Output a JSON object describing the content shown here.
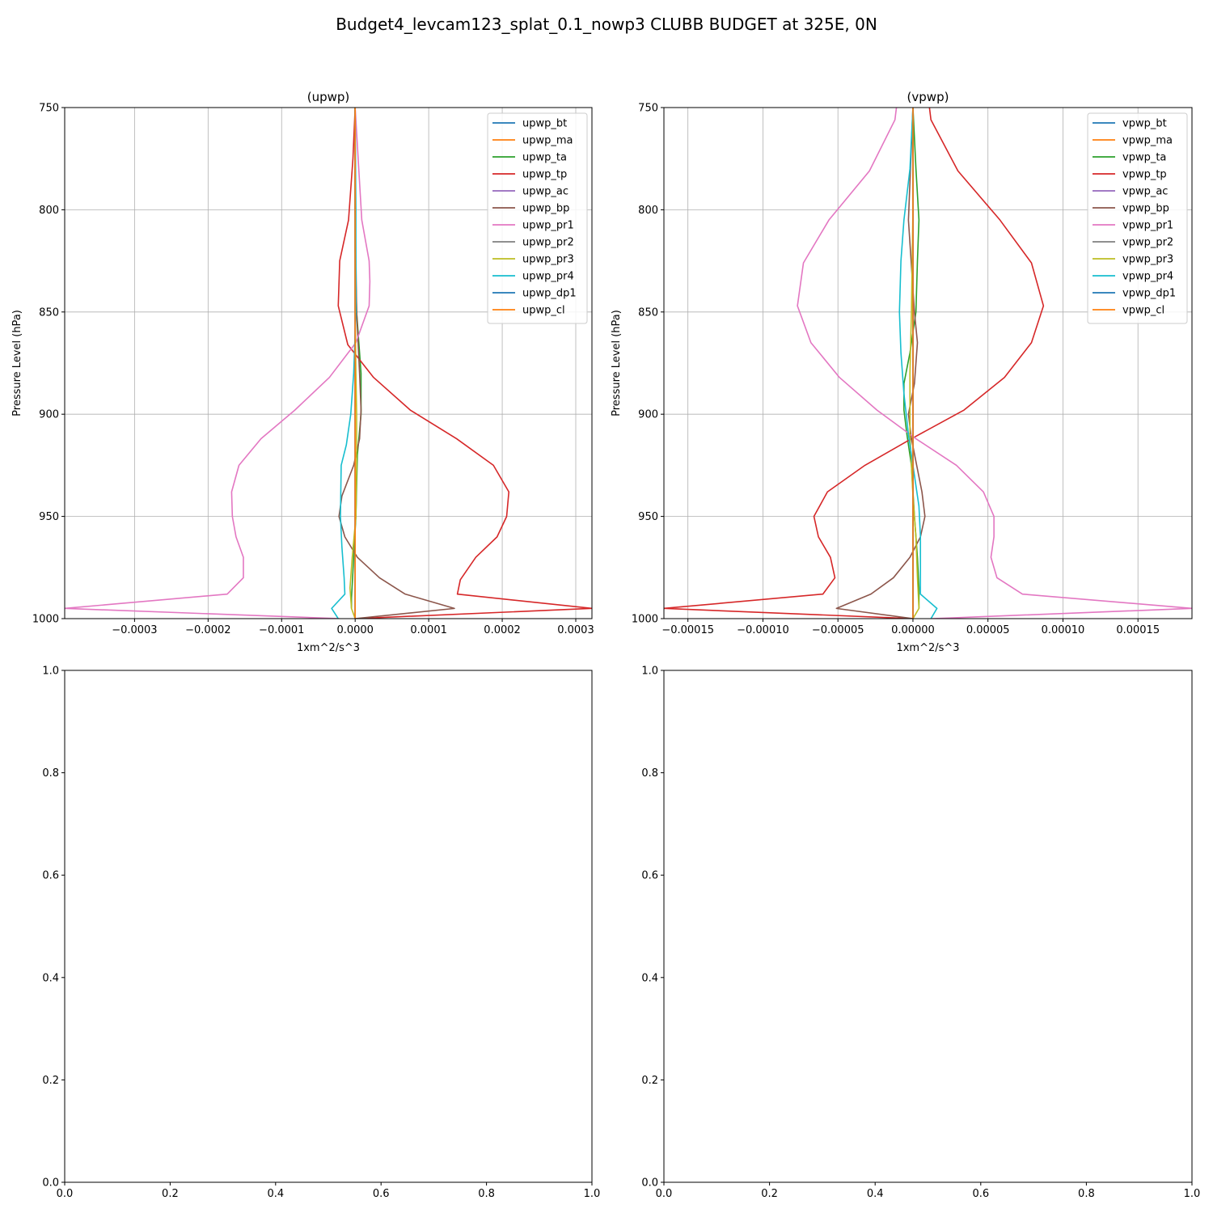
{
  "figure": {
    "title": "Budget4_levcam123_splat_0.1_nowp3 CLUBB BUDGET at 325E, 0N"
  },
  "chart_data": [
    {
      "type": "line",
      "title": "(upwp)",
      "xlabel": "1xm^2/s^3",
      "ylabel": "Pressure Level (hPa)",
      "xlim": [
        -0.000395,
        0.000322
      ],
      "ylim": [
        1000,
        750
      ],
      "y_inverted": true,
      "grid": true,
      "legend_position": "top-right",
      "xticks": [
        -0.0003,
        -0.0002,
        -0.0001,
        0,
        0.0001,
        0.0002,
        0.0003
      ],
      "xtick_labels": [
        "−0.0003",
        "−0.0002",
        "−0.0001",
        "0.0000",
        "0.0001",
        "0.0002",
        "0.0003"
      ],
      "yticks": [
        750,
        800,
        850,
        900,
        950,
        1000
      ],
      "ytick_labels": [
        "750",
        "800",
        "850",
        "900",
        "950",
        "1000"
      ],
      "series": [
        {
          "name": "upwp_bt",
          "color": "#1f77b4",
          "x": [
            0,
            0,
            0,
            0,
            0,
            0,
            0
          ],
          "y": [
            750,
            800,
            850,
            900,
            950,
            990,
            1000
          ]
        },
        {
          "name": "upwp_ma",
          "color": "#ff7f0e",
          "x": [
            0,
            0,
            0,
            0,
            0,
            0,
            0
          ],
          "y": [
            750,
            800,
            850,
            900,
            950,
            990,
            1000
          ]
        },
        {
          "name": "upwp_ta",
          "color": "#2ca02c",
          "x": [
            0,
            0,
            2e-06,
            5e-06,
            8e-06,
            8e-06,
            3e-06,
            1e-06,
            -2e-06,
            -5e-06,
            -5e-06
          ],
          "y": [
            750,
            820,
            850,
            865,
            880,
            900,
            920,
            950,
            970,
            990,
            995
          ]
        },
        {
          "name": "upwp_tp",
          "color": "#d62728",
          "x": [
            0,
            -3e-06,
            -9e-06,
            -2.1e-05,
            -2.3e-05,
            -1e-05,
            2.5e-05,
            7.5e-05,
            0.000138,
            0.000188,
            0.000209,
            0.000206,
            0.000193,
            0.000164,
            0.000143,
            0.000139,
            0.000322,
            0
          ],
          "y": [
            750,
            775,
            805,
            825,
            847,
            866,
            882,
            898,
            912,
            925,
            938,
            950,
            960,
            970,
            981,
            988,
            995,
            1000
          ]
        },
        {
          "name": "upwp_ac",
          "color": "#9467bd",
          "x": [
            0,
            0,
            0,
            0,
            0,
            0,
            0
          ],
          "y": [
            750,
            800,
            850,
            900,
            950,
            990,
            1000
          ]
        },
        {
          "name": "upwp_bp",
          "color": "#8c564b",
          "x": [
            0,
            0,
            2e-06,
            6e-06,
            8e-06,
            6e-06,
            -2e-06,
            -1.8e-05,
            -2.2e-05,
            -1.4e-05,
            3e-06,
            3.3e-05,
            6.8e-05,
            0.000135,
            0
          ],
          "y": [
            750,
            800,
            850,
            880,
            898,
            912,
            925,
            940,
            950,
            960,
            970,
            980,
            988,
            995,
            1000
          ]
        },
        {
          "name": "upwp_pr1",
          "color": "#e377c2",
          "x": [
            0,
            9e-06,
            1.9e-05,
            2e-05,
            1.9e-05,
            1e-06,
            -3.5e-05,
            -8.2e-05,
            -0.000128,
            -0.000158,
            -0.000168,
            -0.000167,
            -0.000162,
            -0.000152,
            -0.000152,
            -0.000174,
            -0.000395,
            -2.1e-05
          ],
          "y": [
            750,
            805,
            825,
            835,
            847,
            865,
            882,
            898,
            912,
            925,
            938,
            950,
            960,
            970,
            980,
            988,
            995,
            1000
          ]
        },
        {
          "name": "upwp_pr2",
          "color": "#7f7f7f",
          "x": [
            0,
            0,
            0,
            0,
            0,
            0,
            0
          ],
          "y": [
            750,
            800,
            850,
            900,
            950,
            990,
            1000
          ]
        },
        {
          "name": "upwp_pr3",
          "color": "#bcbd22",
          "x": [
            0,
            0,
            0,
            1e-06,
            2e-06,
            2e-06,
            1e-06,
            -4e-06,
            -7e-06,
            -5e-06,
            0
          ],
          "y": [
            750,
            800,
            850,
            880,
            900,
            925,
            950,
            970,
            985,
            995,
            1000
          ]
        },
        {
          "name": "upwp_pr4",
          "color": "#17becf",
          "x": [
            0,
            1e-06,
            1e-06,
            -2e-06,
            -6e-06,
            -1.2e-05,
            -1.9e-05,
            -2e-05,
            -1.8e-05,
            -1.5e-05,
            -1.4e-05,
            -3.2e-05,
            -2.3e-05
          ],
          "y": [
            750,
            800,
            850,
            880,
            900,
            915,
            925,
            950,
            965,
            980,
            988,
            995,
            1000
          ]
        },
        {
          "name": "upwp_dp1",
          "color": "#1f77b4",
          "x": [
            0,
            0,
            0,
            0,
            0,
            0,
            0
          ],
          "y": [
            750,
            800,
            850,
            900,
            950,
            990,
            1000
          ]
        },
        {
          "name": "upwp_cl",
          "color": "#ff7f0e",
          "x": [
            0,
            0,
            0,
            0,
            0,
            0,
            0
          ],
          "y": [
            750,
            800,
            850,
            900,
            950,
            990,
            1000
          ]
        }
      ]
    },
    {
      "type": "line",
      "title": "(vpwp)",
      "xlabel": "1xm^2/s^3",
      "ylabel": "Pressure Level (hPa)",
      "xlim": [
        -0.000166,
        0.000186
      ],
      "ylim": [
        1000,
        750
      ],
      "y_inverted": true,
      "grid": true,
      "legend_position": "top-right",
      "xticks": [
        -0.00015,
        -0.0001,
        -5e-05,
        0,
        5e-05,
        0.0001,
        0.00015
      ],
      "xtick_labels": [
        "−0.00015",
        "−0.00010",
        "−0.00005",
        "0.00000",
        "0.00005",
        "0.00010",
        "0.00015"
      ],
      "yticks": [
        750,
        800,
        850,
        900,
        950,
        1000
      ],
      "ytick_labels": [
        "750",
        "800",
        "850",
        "900",
        "950",
        "1000"
      ],
      "series": [
        {
          "name": "vpwp_bt",
          "color": "#1f77b4",
          "x": [
            0,
            0,
            0,
            0,
            0,
            0,
            0
          ],
          "y": [
            750,
            800,
            850,
            900,
            950,
            990,
            1000
          ]
        },
        {
          "name": "vpwp_ma",
          "color": "#ff7f0e",
          "x": [
            0,
            0,
            0,
            0,
            0,
            0,
            0
          ],
          "y": [
            750,
            800,
            850,
            900,
            950,
            990,
            1000
          ]
        },
        {
          "name": "vpwp_ta",
          "color": "#2ca02c",
          "x": [
            0,
            2e-06,
            4e-06,
            3e-06,
            2e-06,
            -2e-06,
            -6e-06,
            -6e-06,
            -4e-06,
            -1e-06,
            1e-06,
            3e-06,
            4e-06,
            4e-06
          ],
          "y": [
            750,
            780,
            805,
            825,
            850,
            870,
            885,
            898,
            910,
            925,
            950,
            970,
            985,
            995
          ]
        },
        {
          "name": "vpwp_tp",
          "color": "#d62728",
          "x": [
            1.1e-05,
            1.2e-05,
            3e-05,
            5.8e-05,
            7.9e-05,
            8.7e-05,
            7.9e-05,
            6.1e-05,
            3.4e-05,
            -1e-06,
            -3.2e-05,
            -5.7e-05,
            -6.6e-05,
            -6.3e-05,
            -5.5e-05,
            -5.2e-05,
            -6e-05,
            -0.000166,
            0
          ],
          "y": [
            750,
            756,
            781,
            805,
            826,
            847,
            865,
            882,
            898,
            912,
            925,
            938,
            950,
            960,
            970,
            980,
            988,
            995,
            1000
          ]
        },
        {
          "name": "vpwp_ac",
          "color": "#9467bd",
          "x": [
            0,
            0,
            0,
            0,
            0,
            0,
            0
          ],
          "y": [
            750,
            800,
            850,
            900,
            950,
            990,
            1000
          ]
        },
        {
          "name": "vpwp_bp",
          "color": "#8c564b",
          "x": [
            0,
            -3e-06,
            1e-06,
            3e-06,
            1e-06,
            -3e-06,
            -1e-06,
            6e-06,
            8e-06,
            5e-06,
            -2e-06,
            -1.3e-05,
            -2.8e-05,
            -5.1e-05,
            0
          ],
          "y": [
            750,
            805,
            850,
            865,
            885,
            900,
            912,
            938,
            950,
            960,
            970,
            980,
            988,
            995,
            1000
          ]
        },
        {
          "name": "vpwp_pr1",
          "color": "#e377c2",
          "x": [
            -1.1e-05,
            -1.2e-05,
            -2.9e-05,
            -5.6e-05,
            -7.3e-05,
            -7.7e-05,
            -6.8e-05,
            -4.9e-05,
            -2.4e-05,
            2e-06,
            2.9e-05,
            4.7e-05,
            5.4e-05,
            5.4e-05,
            5.2e-05,
            5.6e-05,
            7.3e-05,
            0.000186,
            1.3e-05
          ],
          "y": [
            750,
            756,
            781,
            805,
            826,
            847,
            865,
            882,
            898,
            912,
            925,
            938,
            950,
            960,
            970,
            980,
            988,
            995,
            1000
          ]
        },
        {
          "name": "vpwp_pr2",
          "color": "#7f7f7f",
          "x": [
            0,
            0,
            0,
            0,
            0,
            0,
            0
          ],
          "y": [
            750,
            800,
            850,
            900,
            950,
            990,
            1000
          ]
        },
        {
          "name": "vpwp_pr3",
          "color": "#bcbd22",
          "x": [
            0,
            0,
            -1e-06,
            -2e-06,
            -2e-06,
            0,
            2e-06,
            3e-06,
            4e-06,
            0
          ],
          "y": [
            750,
            800,
            850,
            880,
            910,
            940,
            960,
            980,
            995,
            1000
          ]
        },
        {
          "name": "vpwp_pr4",
          "color": "#17becf",
          "x": [
            0,
            -2e-06,
            -6e-06,
            -8e-06,
            -9e-06,
            -8e-06,
            -6e-06,
            -3e-06,
            1e-06,
            4e-06,
            5e-06,
            5e-06,
            5e-06,
            1.6e-05,
            1.2e-05
          ],
          "y": [
            750,
            780,
            805,
            825,
            850,
            870,
            890,
            910,
            930,
            945,
            960,
            975,
            988,
            995,
            1000
          ]
        },
        {
          "name": "vpwp_dp1",
          "color": "#1f77b4",
          "x": [
            0,
            0,
            0,
            0,
            0,
            0,
            0
          ],
          "y": [
            750,
            800,
            850,
            900,
            950,
            990,
            1000
          ]
        },
        {
          "name": "vpwp_cl",
          "color": "#ff7f0e",
          "x": [
            0,
            0,
            0,
            0,
            0,
            0,
            0
          ],
          "y": [
            750,
            800,
            850,
            900,
            950,
            990,
            1000
          ]
        }
      ]
    },
    {
      "type": "line",
      "title": "",
      "xlabel": "",
      "ylabel": "",
      "xlim": [
        0,
        1
      ],
      "ylim": [
        0,
        1
      ],
      "grid": false,
      "xticks": [
        0,
        0.2,
        0.4,
        0.6,
        0.8,
        1
      ],
      "xtick_labels": [
        "0.0",
        "0.2",
        "0.4",
        "0.6",
        "0.8",
        "1.0"
      ],
      "yticks": [
        0,
        0.2,
        0.4,
        0.6,
        0.8,
        1
      ],
      "ytick_labels": [
        "0.0",
        "0.2",
        "0.4",
        "0.6",
        "0.8",
        "1.0"
      ],
      "series": []
    },
    {
      "type": "line",
      "title": "",
      "xlabel": "",
      "ylabel": "",
      "xlim": [
        0,
        1
      ],
      "ylim": [
        0,
        1
      ],
      "grid": false,
      "xticks": [
        0,
        0.2,
        0.4,
        0.6,
        0.8,
        1
      ],
      "xtick_labels": [
        "0.0",
        "0.2",
        "0.4",
        "0.6",
        "0.8",
        "1.0"
      ],
      "yticks": [
        0,
        0.2,
        0.4,
        0.6,
        0.8,
        1
      ],
      "ytick_labels": [
        "0.0",
        "0.2",
        "0.4",
        "0.6",
        "0.8",
        "1.0"
      ],
      "series": []
    }
  ]
}
